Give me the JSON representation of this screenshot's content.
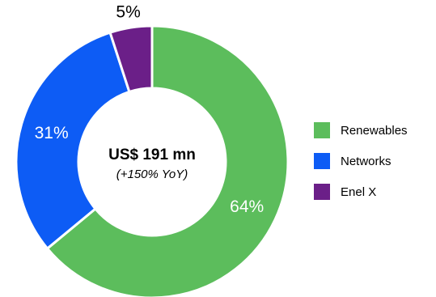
{
  "chart_data": {
    "type": "pie",
    "donut": true,
    "center_title": "US$ 191 mn",
    "center_subtitle": "(+150% YoY)",
    "legend_position": "right",
    "slices": [
      {
        "name": "Renewables",
        "value": 64,
        "label": "64%",
        "color": "#5cbd5c",
        "label_color": "#ffffff"
      },
      {
        "name": "Networks",
        "value": 31,
        "label": "31%",
        "color": "#0d5cf5",
        "label_color": "#ffffff"
      },
      {
        "name": "Enel X",
        "value": 5,
        "label": "5%",
        "color": "#6b1f88",
        "label_color": "#000000"
      }
    ]
  }
}
